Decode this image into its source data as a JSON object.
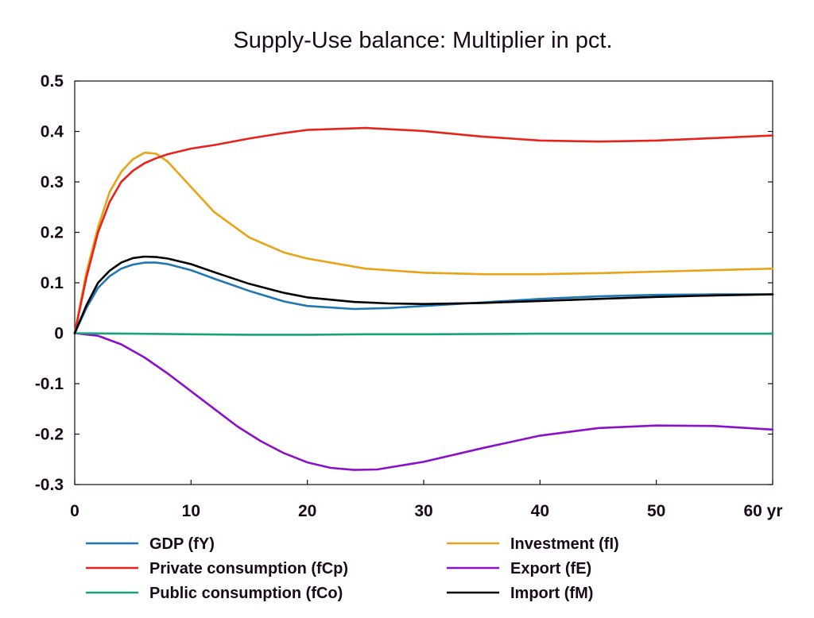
{
  "chart_data": {
    "type": "line",
    "title": "Supply-Use balance: Multiplier in pct.",
    "xlabel": "",
    "ylabel": "",
    "x_unit_label": "yr",
    "xlim": [
      0,
      60
    ],
    "ylim": [
      -0.3,
      0.5
    ],
    "x_ticks": [
      0,
      10,
      20,
      30,
      40,
      50,
      60
    ],
    "x_tick_labels": [
      "0",
      "10",
      "20",
      "30",
      "40",
      "50",
      "60 yr"
    ],
    "y_ticks": [
      0.5,
      0.4,
      0.3,
      0.2,
      0.1,
      0,
      -0.1,
      -0.2,
      -0.3
    ],
    "y_tick_labels": [
      "0.5",
      "0.4",
      "0.3",
      "0.2",
      "0.1",
      "0",
      "-0.1",
      "-0.2",
      "-0.3"
    ],
    "grid": false,
    "legend_position": "bottom",
    "series": [
      {
        "name": "GDP (fY)",
        "color": "#1f77b4",
        "x": [
          0,
          1,
          2,
          3,
          4,
          5,
          6,
          7,
          8,
          10,
          12,
          15,
          18,
          20,
          24,
          27,
          30,
          35,
          40,
          45,
          50,
          55,
          60
        ],
        "y": [
          0,
          0.05,
          0.09,
          0.113,
          0.128,
          0.136,
          0.14,
          0.14,
          0.137,
          0.125,
          0.108,
          0.084,
          0.063,
          0.054,
          0.048,
          0.05,
          0.054,
          0.061,
          0.068,
          0.073,
          0.076,
          0.077,
          0.077
        ]
      },
      {
        "name": "Investment (fI)",
        "color": "#e8a317",
        "x": [
          0,
          1,
          2,
          3,
          4,
          5,
          6,
          7,
          8,
          10,
          12,
          15,
          18,
          20,
          25,
          30,
          35,
          40,
          45,
          50,
          55,
          60
        ],
        "y": [
          0,
          0.12,
          0.21,
          0.28,
          0.32,
          0.345,
          0.358,
          0.356,
          0.34,
          0.29,
          0.24,
          0.19,
          0.16,
          0.148,
          0.128,
          0.12,
          0.117,
          0.117,
          0.119,
          0.122,
          0.125,
          0.128
        ]
      },
      {
        "name": "Private consumption (fCp)",
        "color": "#e8231c",
        "x": [
          0,
          1,
          2,
          3,
          4,
          5,
          6,
          7,
          8,
          10,
          12,
          15,
          18,
          20,
          25,
          30,
          35,
          40,
          45,
          50,
          55,
          60
        ],
        "y": [
          0,
          0.11,
          0.2,
          0.26,
          0.3,
          0.322,
          0.337,
          0.347,
          0.355,
          0.366,
          0.373,
          0.386,
          0.397,
          0.403,
          0.407,
          0.401,
          0.39,
          0.382,
          0.38,
          0.382,
          0.387,
          0.392
        ]
      },
      {
        "name": "Export (fE)",
        "color": "#8b10c8",
        "x": [
          0,
          2,
          4,
          6,
          8,
          10,
          12,
          14,
          16,
          18,
          20,
          22,
          24,
          26,
          30,
          35,
          40,
          45,
          50,
          55,
          60
        ],
        "y": [
          0,
          -0.005,
          -0.022,
          -0.048,
          -0.08,
          -0.115,
          -0.15,
          -0.185,
          -0.214,
          -0.238,
          -0.256,
          -0.267,
          -0.271,
          -0.27,
          -0.255,
          -0.228,
          -0.203,
          -0.188,
          -0.183,
          -0.184,
          -0.191
        ]
      },
      {
        "name": "Public consumption (fCo)",
        "color": "#18a37a",
        "x": [
          0,
          5,
          10,
          15,
          20,
          25,
          30,
          40,
          50,
          60
        ],
        "y": [
          0,
          -0.001,
          -0.002,
          -0.003,
          -0.003,
          -0.002,
          -0.002,
          -0.001,
          -0.001,
          -0.001
        ]
      },
      {
        "name": "Import (fM)",
        "color": "#000000",
        "x": [
          0,
          1,
          2,
          3,
          4,
          5,
          6,
          7,
          8,
          10,
          12,
          15,
          18,
          20,
          24,
          27,
          30,
          35,
          40,
          45,
          50,
          55,
          60
        ],
        "y": [
          0,
          0.055,
          0.1,
          0.124,
          0.14,
          0.149,
          0.152,
          0.151,
          0.148,
          0.137,
          0.121,
          0.098,
          0.08,
          0.071,
          0.062,
          0.059,
          0.058,
          0.06,
          0.064,
          0.068,
          0.072,
          0.075,
          0.077
        ]
      }
    ],
    "legend": [
      {
        "name": "GDP (fY)",
        "color": "#1f77b4"
      },
      {
        "name": "Investment (fI)",
        "color": "#e8a317"
      },
      {
        "name": "Private consumption (fCp)",
        "color": "#e8231c"
      },
      {
        "name": "Export (fE)",
        "color": "#8b10c8"
      },
      {
        "name": "Public consumption (fCo)",
        "color": "#18a37a"
      },
      {
        "name": "Import (fM)",
        "color": "#000000"
      }
    ]
  }
}
